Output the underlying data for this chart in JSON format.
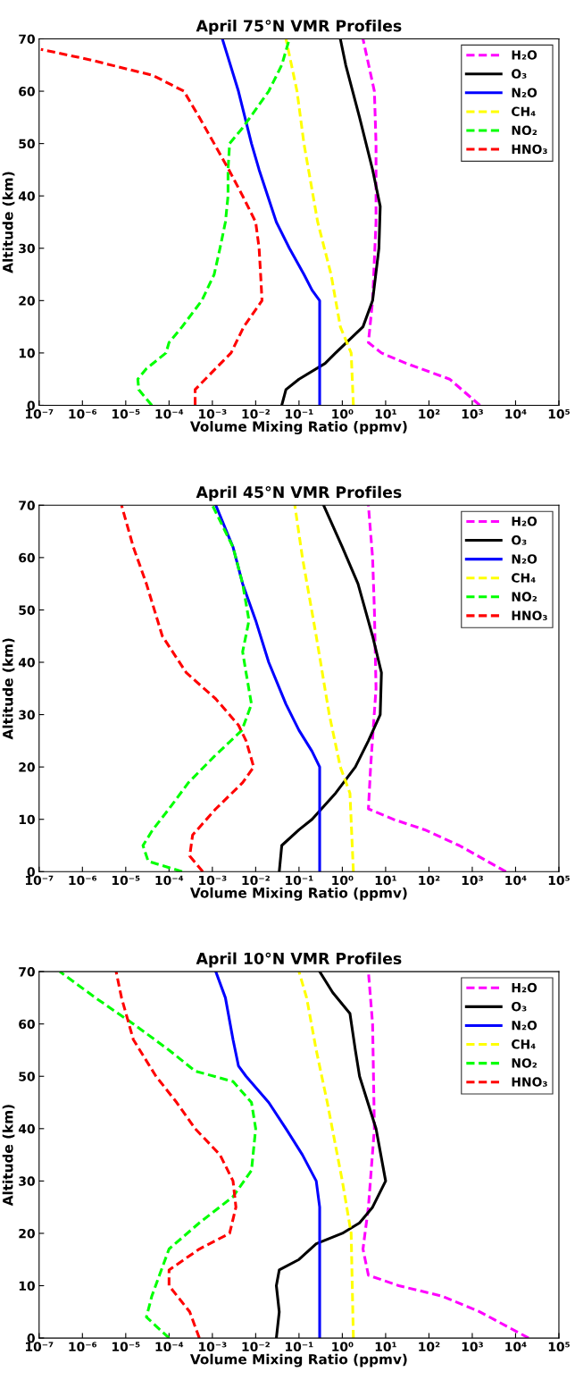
{
  "chart_data": [
    {
      "type": "line",
      "title": "April 75°N VMR Profiles",
      "xlabel": "Volume Mixing Ratio (ppmv)",
      "ylabel": "Altitude (km)",
      "log": "x",
      "legend": "top right",
      "xlim": [
        1e-07,
        100000
      ],
      "ylim": [
        0,
        70
      ],
      "xticks": [
        {
          "value": 1e-07,
          "label": "10⁻⁷"
        },
        {
          "value": 1e-06,
          "label": "10⁻⁶"
        },
        {
          "value": 1e-05,
          "label": "10⁻⁵"
        },
        {
          "value": 0.0001,
          "label": "10⁻⁴"
        },
        {
          "value": 0.001,
          "label": "10⁻³"
        },
        {
          "value": 0.01,
          "label": "10⁻²"
        },
        {
          "value": 0.1,
          "label": "10⁻¹"
        },
        {
          "value": 1,
          "label": "10⁰"
        },
        {
          "value": 10,
          "label": "10¹"
        },
        {
          "value": 100,
          "label": "10²"
        },
        {
          "value": 1000,
          "label": "10³"
        },
        {
          "value": 10000,
          "label": "10⁴"
        },
        {
          "value": 100000,
          "label": "10⁵"
        }
      ],
      "yticks": [
        0,
        10,
        20,
        30,
        40,
        50,
        60,
        70
      ],
      "series": [
        {
          "name": "H₂O",
          "color": "#ff00ff",
          "line_style": "dashed",
          "x": [
            1500,
            300,
            30,
            8,
            4,
            5,
            6,
            6,
            5.5,
            3
          ],
          "values": [
            0,
            5,
            8,
            10,
            12,
            20,
            35,
            50,
            60,
            70
          ]
        },
        {
          "name": "O₃",
          "color": "#000000",
          "line_style": "solid",
          "x": [
            0.04,
            0.05,
            0.1,
            0.4,
            0.7,
            3,
            5,
            7,
            7.5,
            5,
            2.5,
            1.2,
            0.9
          ],
          "values": [
            0,
            3,
            5,
            8,
            10,
            15,
            20,
            30,
            38,
            45,
            55,
            65,
            70
          ]
        },
        {
          "name": "N₂O",
          "color": "#0000ff",
          "line_style": "solid",
          "x": [
            0.3,
            0.3,
            0.2,
            0.13,
            0.06,
            0.03,
            0.012,
            0.008,
            0.004,
            0.0017
          ],
          "values": [
            0,
            20,
            22,
            25,
            30,
            35,
            45,
            50,
            60,
            70
          ]
        },
        {
          "name": "CH₄",
          "color": "#ffff00",
          "line_style": "dashed",
          "x": [
            1.8,
            1.6,
            0.9,
            0.55,
            0.27,
            0.13,
            0.09,
            0.05
          ],
          "values": [
            0,
            10,
            15,
            25,
            35,
            50,
            60,
            70
          ]
        },
        {
          "name": "NO₂",
          "color": "#00ff00",
          "line_style": "dashed",
          "x": [
            4e-05,
            2e-05,
            1.9e-05,
            3e-05,
            8.5e-05,
            0.0001,
            0.0002,
            0.00057,
            0.0011,
            0.0015,
            0.002,
            0.0023,
            0.0023,
            0.0025,
            0.005,
            0.02,
            0.04,
            0.06
          ],
          "values": [
            0,
            3,
            5,
            7,
            10,
            12,
            15,
            20,
            25,
            30,
            35,
            40,
            45,
            50,
            53,
            60,
            65,
            70
          ]
        },
        {
          "name": "HNO₃",
          "color": "#ff0000",
          "line_style": "dashed",
          "x": [
            0.0004,
            0.0004,
            0.0009,
            0.0027,
            0.0053,
            0.014,
            0.013,
            0.012,
            0.01,
            0.005,
            0.0024,
            0.0011,
            0.0005,
            0.00022,
            4.3e-05,
            1.5e-06,
            1.1e-07
          ],
          "values": [
            0,
            3,
            6,
            10,
            15,
            20,
            25,
            30,
            35,
            40,
            45,
            50,
            55,
            60,
            63,
            66,
            68
          ]
        }
      ]
    },
    {
      "type": "line",
      "title": "April 45°N VMR Profiles",
      "xlabel": "Volume Mixing Ratio (ppmv)",
      "ylabel": "Altitude (km)",
      "log": "x",
      "legend": "top right",
      "xlim": [
        1e-07,
        100000
      ],
      "ylim": [
        0,
        70
      ],
      "xticks": [
        {
          "value": 1e-07,
          "label": "10⁻⁷"
        },
        {
          "value": 1e-06,
          "label": "10⁻⁶"
        },
        {
          "value": 1e-05,
          "label": "10⁻⁵"
        },
        {
          "value": 0.0001,
          "label": "10⁻⁴"
        },
        {
          "value": 0.001,
          "label": "10⁻³"
        },
        {
          "value": 0.01,
          "label": "10⁻²"
        },
        {
          "value": 0.1,
          "label": "10⁻¹"
        },
        {
          "value": 1,
          "label": "10⁰"
        },
        {
          "value": 10,
          "label": "10¹"
        },
        {
          "value": 100,
          "label": "10²"
        },
        {
          "value": 1000,
          "label": "10³"
        },
        {
          "value": 10000,
          "label": "10⁴"
        },
        {
          "value": 100000,
          "label": "10⁵"
        }
      ],
      "yticks": [
        0,
        10,
        20,
        30,
        40,
        50,
        60,
        70
      ],
      "series": [
        {
          "name": "H₂O",
          "color": "#ff00ff",
          "line_style": "dashed",
          "x": [
            6000,
            500,
            80,
            15,
            4,
            4.5,
            6,
            5.5,
            5,
            4
          ],
          "values": [
            0,
            5,
            8,
            10,
            12,
            20,
            35,
            50,
            60,
            70
          ]
        },
        {
          "name": "O₃",
          "color": "#000000",
          "line_style": "solid",
          "x": [
            0.035,
            0.04,
            0.1,
            0.2,
            0.7,
            2,
            4,
            7.5,
            8,
            5,
            2.3,
            1,
            0.37
          ],
          "values": [
            0,
            5,
            8,
            10,
            15,
            20,
            25,
            30,
            38,
            45,
            55,
            62,
            70
          ]
        },
        {
          "name": "N₂O",
          "color": "#0000ff",
          "line_style": "solid",
          "x": [
            0.3,
            0.3,
            0.2,
            0.1,
            0.05,
            0.02,
            0.01,
            0.005,
            0.003,
            0.0012
          ],
          "values": [
            0,
            20,
            23,
            27,
            32,
            40,
            48,
            55,
            62,
            70
          ]
        },
        {
          "name": "CH₄",
          "color": "#ffff00",
          "line_style": "dashed",
          "x": [
            1.8,
            1.5,
            0.9,
            0.5,
            0.25,
            0.12,
            0.08
          ],
          "values": [
            0,
            15,
            20,
            30,
            45,
            60,
            70
          ]
        },
        {
          "name": "NO₂",
          "color": "#00ff00",
          "line_style": "dashed",
          "x": [
            0.0002,
            3.3e-05,
            2.5e-05,
            4.2e-05,
            0.0001,
            0.00028,
            0.0011,
            0.0048,
            0.008,
            0.006,
            0.005,
            0.007,
            0.005,
            0.003,
            0.001
          ],
          "values": [
            0,
            2,
            5,
            8,
            12,
            17,
            22,
            27,
            32,
            38,
            42,
            48,
            55,
            62,
            70
          ]
        },
        {
          "name": "HNO₃",
          "color": "#ff0000",
          "line_style": "dashed",
          "x": [
            0.0006,
            0.0003,
            0.00035,
            0.0012,
            0.005,
            0.009,
            0.006,
            0.004,
            0.0012,
            0.00025,
            7e-05,
            3e-05,
            1.5e-05,
            8e-06
          ],
          "values": [
            0,
            3,
            7,
            12,
            17,
            20,
            25,
            28,
            33,
            38,
            45,
            55,
            62,
            70
          ]
        }
      ]
    },
    {
      "type": "line",
      "title": "April 10°N VMR Profiles",
      "xlabel": "Volume Mixing Ratio (ppmv)",
      "ylabel": "Altitude (km)",
      "log": "x",
      "legend": "top right",
      "xlim": [
        1e-07,
        100000
      ],
      "ylim": [
        0,
        70
      ],
      "xticks": [
        {
          "value": 1e-07,
          "label": "10⁻⁷"
        },
        {
          "value": 1e-06,
          "label": "10⁻⁶"
        },
        {
          "value": 1e-05,
          "label": "10⁻⁵"
        },
        {
          "value": 0.0001,
          "label": "10⁻⁴"
        },
        {
          "value": 0.001,
          "label": "10⁻³"
        },
        {
          "value": 0.01,
          "label": "10⁻²"
        },
        {
          "value": 0.1,
          "label": "10⁻¹"
        },
        {
          "value": 1,
          "label": "10⁰"
        },
        {
          "value": 10,
          "label": "10¹"
        },
        {
          "value": 100,
          "label": "10²"
        },
        {
          "value": 1000,
          "label": "10³"
        },
        {
          "value": 10000,
          "label": "10⁴"
        },
        {
          "value": 100000,
          "label": "10⁵"
        }
      ],
      "yticks": [
        0,
        10,
        20,
        30,
        40,
        50,
        60,
        70
      ],
      "series": [
        {
          "name": "H₂O",
          "color": "#ff00ff",
          "line_style": "dashed",
          "x": [
            20000,
            1500,
            200,
            20,
            4,
            3,
            4,
            5.5,
            5,
            4
          ],
          "values": [
            0,
            5,
            8,
            10,
            12,
            17,
            25,
            40,
            60,
            70
          ]
        },
        {
          "name": "O₃",
          "color": "#000000",
          "line_style": "solid",
          "x": [
            0.03,
            0.035,
            0.03,
            0.035,
            0.1,
            0.25,
            1,
            2.5,
            5,
            10,
            6,
            2.5,
            2,
            1.5,
            0.6,
            0.3
          ],
          "values": [
            0,
            5,
            10,
            13,
            15,
            18,
            20,
            22,
            25,
            30,
            40,
            50,
            55,
            62,
            66,
            70
          ]
        },
        {
          "name": "N₂O",
          "color": "#0000ff",
          "line_style": "solid",
          "x": [
            0.3,
            0.3,
            0.25,
            0.12,
            0.05,
            0.02,
            0.006,
            0.004,
            0.003,
            0.002,
            0.0012
          ],
          "values": [
            0,
            25,
            30,
            35,
            40,
            45,
            50,
            52,
            57,
            65,
            70
          ]
        },
        {
          "name": "CH₄",
          "color": "#ffff00",
          "line_style": "dashed",
          "x": [
            1.8,
            1.6,
            1.0,
            0.45,
            0.25,
            0.15,
            0.1
          ],
          "values": [
            0,
            20,
            30,
            45,
            55,
            65,
            70
          ]
        },
        {
          "name": "NO₂",
          "color": "#00ff00",
          "line_style": "dashed",
          "x": [
            0.0001,
            3e-05,
            4e-05,
            6e-05,
            0.0001,
            0.0005,
            0.003,
            0.008,
            0.01,
            0.008,
            0.003,
            0.0004,
            0.0001,
            1.5e-05,
            2e-06,
            3e-07
          ],
          "values": [
            0,
            4,
            8,
            12,
            17,
            22,
            27,
            32,
            40,
            45,
            49,
            51,
            55,
            60,
            65,
            70
          ]
        },
        {
          "name": "HNO₃",
          "color": "#ff0000",
          "line_style": "dashed",
          "x": [
            0.0005,
            0.0003,
            0.0001,
            0.0001,
            0.0005,
            0.0025,
            0.0035,
            0.003,
            0.0015,
            0.0004,
            0.00015,
            5e-05,
            1.5e-05,
            8e-06,
            6e-06
          ],
          "values": [
            0,
            5,
            10,
            13,
            17,
            20,
            25,
            30,
            35,
            40,
            45,
            50,
            57,
            65,
            70
          ]
        }
      ]
    }
  ]
}
